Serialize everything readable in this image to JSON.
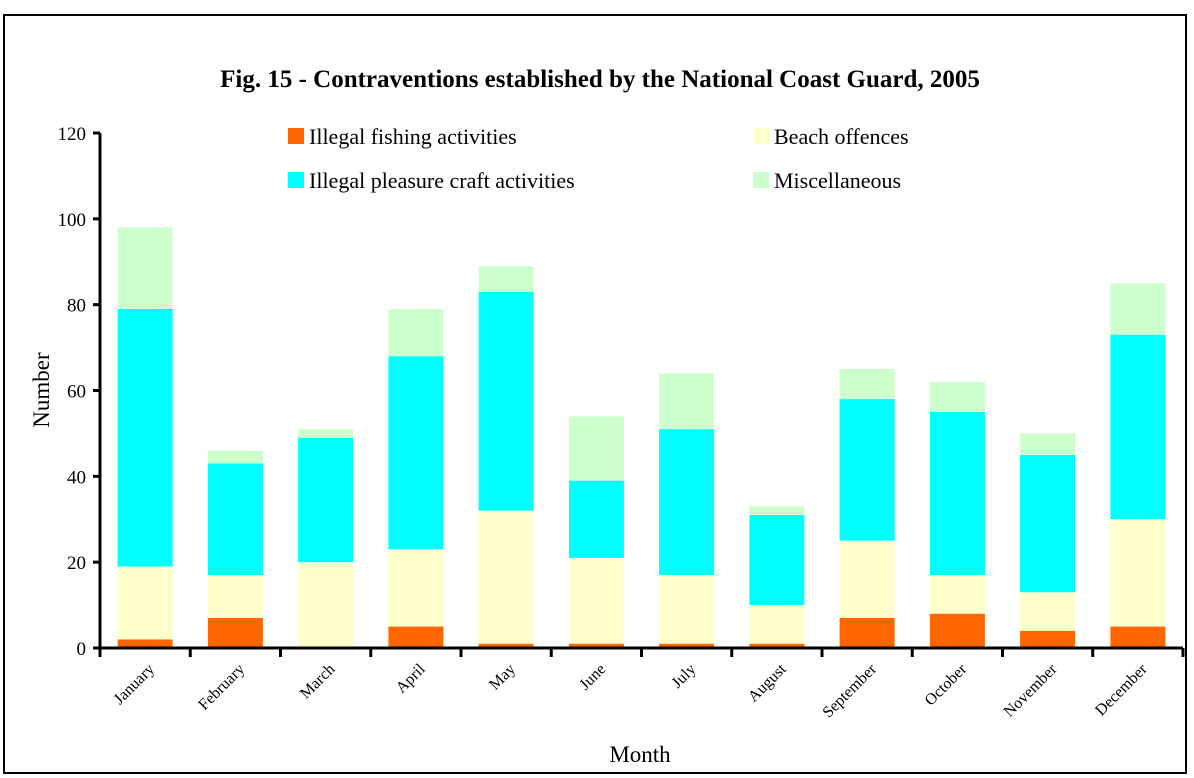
{
  "chart_data": {
    "type": "bar",
    "stacked": true,
    "title": "Fig. 15 - Contraventions established by the National Coast Guard, 2005",
    "xlabel": "Month",
    "ylabel": "Number",
    "ylim": [
      0,
      120
    ],
    "yticks": [
      "0",
      "20",
      "40",
      "60",
      "80",
      "100",
      "120"
    ],
    "grid": false,
    "legend_position": "top",
    "categories": [
      "January",
      "February",
      "March",
      "April",
      "May",
      "June",
      "July",
      "August",
      "September",
      "October",
      "November",
      "December"
    ],
    "series": [
      {
        "name": "Illegal fishing activities",
        "color": "#ff6600",
        "values": [
          2,
          7,
          0,
          5,
          1,
          1,
          1,
          1,
          7,
          8,
          4,
          5
        ]
      },
      {
        "name": "Beach offences",
        "color": "#ffffcc",
        "values": [
          17,
          10,
          20,
          18,
          31,
          20,
          16,
          9,
          18,
          9,
          9,
          25
        ]
      },
      {
        "name": "Illegal pleasure craft activities",
        "color": "#00ffff",
        "values": [
          60,
          26,
          29,
          45,
          51,
          18,
          34,
          21,
          33,
          38,
          32,
          43
        ]
      },
      {
        "name": "Miscellaneous",
        "color": "#ccffcc",
        "values": [
          19,
          3,
          2,
          11,
          6,
          15,
          13,
          2,
          7,
          7,
          5,
          12
        ]
      }
    ]
  }
}
